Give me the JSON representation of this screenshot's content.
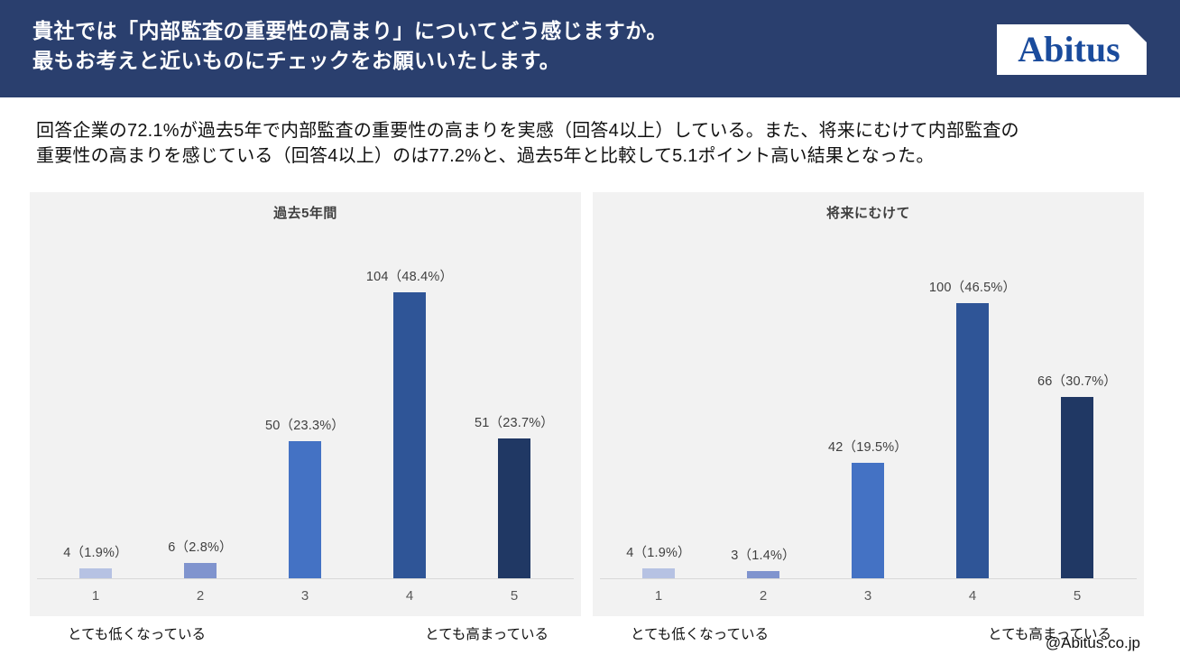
{
  "header": {
    "line1": "貴社では「内部監査の重要性の高まり」についてどう感じますか。",
    "line2": "最もお考えと近いものにチェックをお願いいたします。",
    "bg_color": "#2A3F6E",
    "logo_text": "Abitus",
    "logo_color": "#1A4B9C"
  },
  "summary": {
    "line1": "回答企業の72.1%が過去5年で内部監査の重要性の高まりを実感（回答4以上）している。また、将来にむけて内部監査の",
    "line2": "重要性の高まりを感じている（回答4以上）のは77.2%と、過去5年と比較して5.1ポイント高い結果となった。"
  },
  "colors": {
    "panel_bg": "#F2F2F2",
    "axis_line": "#D9D9D9",
    "tick_text": "#595959",
    "data_label_text": "#404040",
    "bar_palette": [
      "#B6C2E3",
      "#8094CE",
      "#4472C4",
      "#2F5597",
      "#203864"
    ]
  },
  "chart_data": [
    {
      "type": "bar",
      "title": "過去5年間",
      "categories": [
        "1",
        "2",
        "3",
        "4",
        "5"
      ],
      "values": [
        4,
        6,
        50,
        104,
        51
      ],
      "data_labels": [
        "4（1.9%）",
        "6（2.8%）",
        "50（23.3%）",
        "104（48.4%）",
        "51（23.7%）"
      ],
      "axis_note_left": "とても低くなっている",
      "axis_note_right": "とても高まっている",
      "ylim": [
        0,
        110
      ],
      "grid": false,
      "legend": "none"
    },
    {
      "type": "bar",
      "title": "将来にむけて",
      "categories": [
        "1",
        "2",
        "3",
        "4",
        "5"
      ],
      "values": [
        4,
        3,
        42,
        100,
        66
      ],
      "data_labels": [
        "4（1.9%）",
        "3（1.4%）",
        "42（19.5%）",
        "100（46.5%）",
        "66（30.7%）"
      ],
      "axis_note_left": "とても低くなっている",
      "axis_note_right": "とても高まっている",
      "ylim": [
        0,
        110
      ],
      "grid": false,
      "legend": "none"
    }
  ],
  "footer": {
    "credit": "@Abitus.co.jp"
  }
}
